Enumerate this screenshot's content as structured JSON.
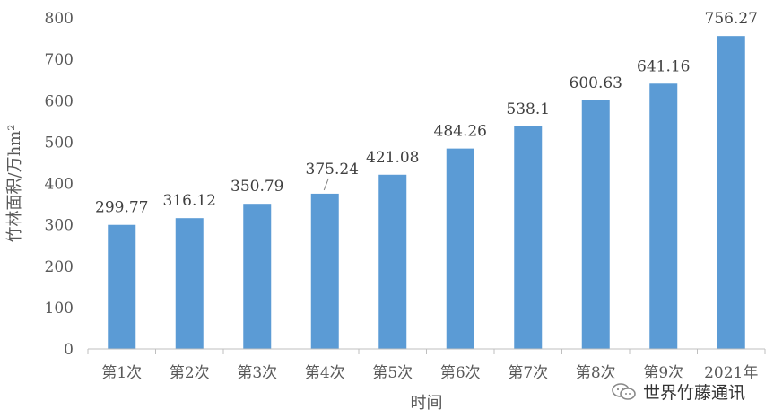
{
  "chart_data": {
    "type": "bar",
    "categories": [
      "第1次",
      "第2次",
      "第3次",
      "第4次",
      "第5次",
      "第6次",
      "第7次",
      "第8次",
      "第9次",
      "2021年"
    ],
    "values": [
      299.77,
      316.12,
      350.79,
      375.24,
      421.08,
      484.26,
      538.1,
      600.63,
      641.16,
      756.27
    ],
    "data_labels": [
      "299.77",
      "316.12",
      "350.79",
      "375.24",
      "421.08",
      "484.26",
      "538.1",
      "600.63",
      "641.16",
      "756.27"
    ],
    "xlabel": "时间",
    "ylabel": "竹林面积/万hm²",
    "ylim": [
      0,
      800
    ],
    "yticks": [
      0,
      100,
      200,
      300,
      400,
      500,
      600,
      700,
      800
    ],
    "bar_color": "#5b9bd5",
    "grid": false,
    "legend": "none"
  },
  "watermark": {
    "text": "世界竹藤通讯",
    "icon": "wechat-icon"
  }
}
